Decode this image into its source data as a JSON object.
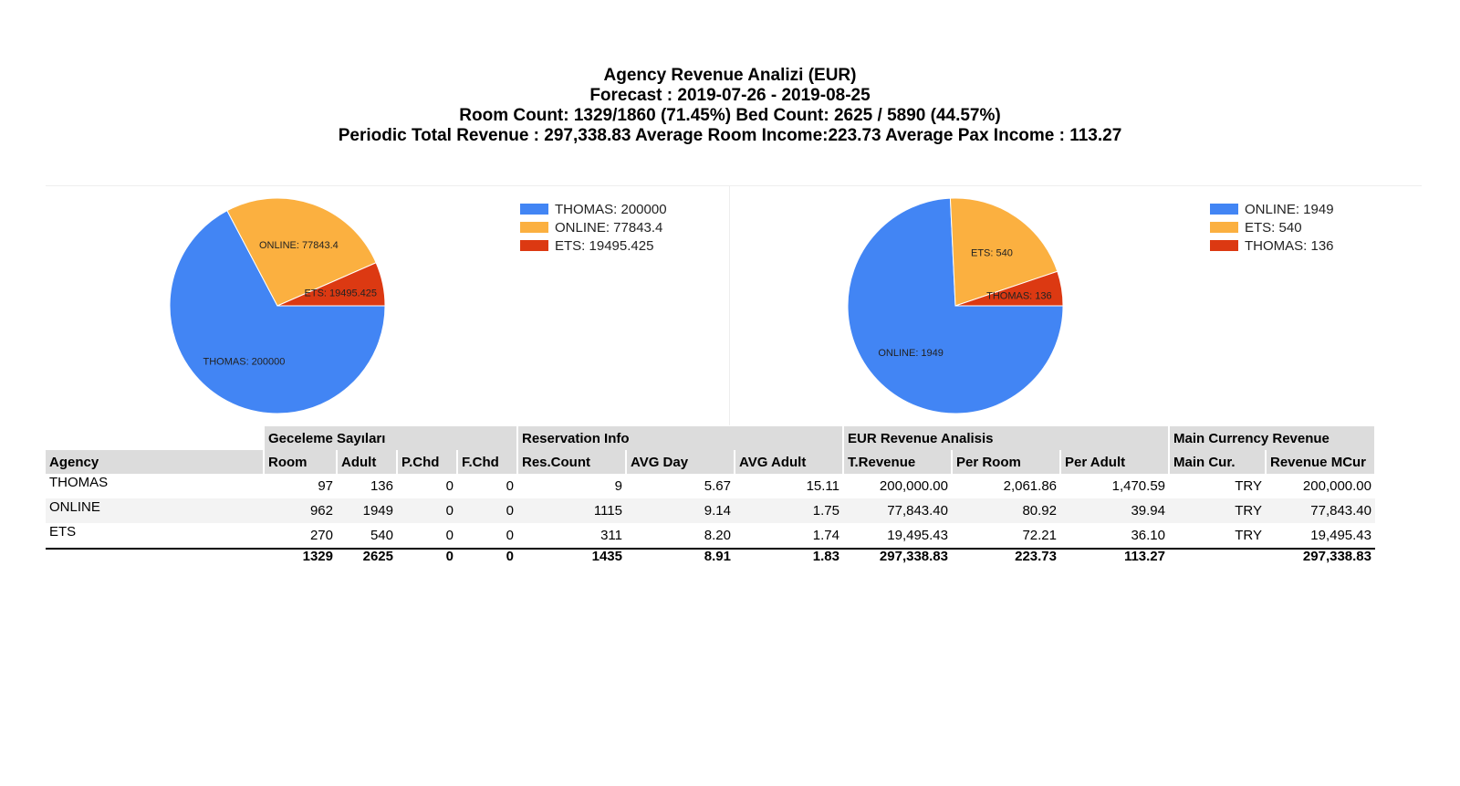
{
  "header": {
    "line1": "Agency Revenue Analizi (EUR)",
    "line2": "Forecast : 2019-07-26 - 2019-08-25",
    "line3": "Room Count: 1329/1860 (71.45%) Bed Count: 2625 / 5890 (44.57%)",
    "line4": "Periodic Total Revenue : 297,338.83 Average Room Income:223.73 Average Pax Income : 113.27"
  },
  "chart_data": [
    {
      "type": "pie",
      "slices": [
        {
          "label": "THOMAS: 200000",
          "name": "THOMAS",
          "value": 200000,
          "color": "#4285f4"
        },
        {
          "label": "ONLINE: 77843.4",
          "name": "ONLINE",
          "value": 77843.4,
          "color": "#fbb040"
        },
        {
          "label": "ETS: 19495.425",
          "name": "ETS",
          "value": 19495.425,
          "color": "#dc3912"
        }
      ],
      "legend_position": "right"
    },
    {
      "type": "pie",
      "slices": [
        {
          "label": "ONLINE: 1949",
          "name": "ONLINE",
          "value": 1949,
          "color": "#4285f4"
        },
        {
          "label": "ETS: 540",
          "name": "ETS",
          "value": 540,
          "color": "#fbb040"
        },
        {
          "label": "THOMAS: 136",
          "name": "THOMAS",
          "value": 136,
          "color": "#dc3912"
        }
      ],
      "legend_position": "right"
    }
  ],
  "table": {
    "groups": {
      "geceleme": "Geceleme Sayıları",
      "reservation": "Reservation Info",
      "eur": "EUR Revenue Analisis",
      "main": "Main Currency Revenue"
    },
    "columns": [
      "Agency",
      "Room",
      "Adult",
      "P.Chd",
      "F.Chd",
      "Res.Count",
      "AVG Day",
      "AVG Adult",
      "T.Revenue",
      "Per Room",
      "Per Adult",
      "Main Cur.",
      "Revenue MCur"
    ],
    "rows": [
      [
        "THOMAS",
        "97",
        "136",
        "0",
        "0",
        "9",
        "5.67",
        "15.11",
        "200,000.00",
        "2,061.86",
        "1,470.59",
        "TRY",
        "200,000.00"
      ],
      [
        "ONLINE",
        "962",
        "1949",
        "0",
        "0",
        "1115",
        "9.14",
        "1.75",
        "77,843.40",
        "80.92",
        "39.94",
        "TRY",
        "77,843.40"
      ],
      [
        "ETS",
        "270",
        "540",
        "0",
        "0",
        "311",
        "8.20",
        "1.74",
        "19,495.43",
        "72.21",
        "36.10",
        "TRY",
        "19,495.43"
      ]
    ],
    "total": [
      "",
      "1329",
      "2625",
      "0",
      "0",
      "1435",
      "8.91",
      "1.83",
      "297,338.83",
      "223.73",
      "113.27",
      "",
      "297,338.83"
    ]
  }
}
